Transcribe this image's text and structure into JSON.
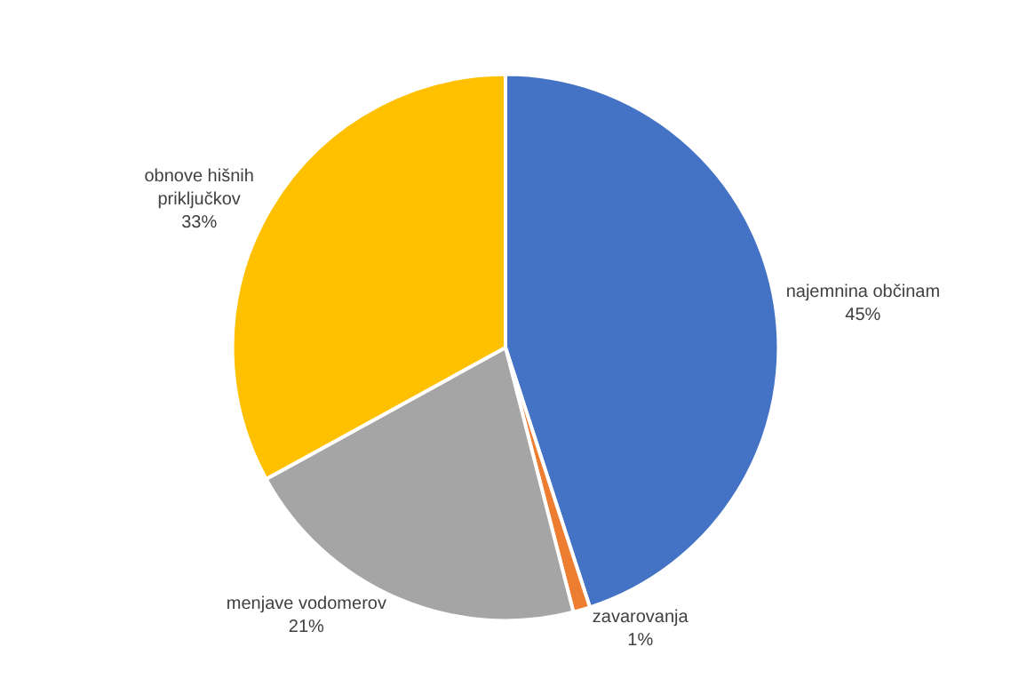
{
  "chart_data": {
    "type": "pie",
    "categories": [
      "najemnina občinam",
      "zavarovanja",
      "menjave vodomerov",
      "obnove hišnih priključkov"
    ],
    "values": [
      45,
      1,
      21,
      33
    ],
    "colors": [
      "#4472c4",
      "#ed7d31",
      "#a5a5a5",
      "#ffc000"
    ],
    "value_labels": [
      "45%",
      "1%",
      "21%",
      "33%"
    ],
    "legend": false
  }
}
